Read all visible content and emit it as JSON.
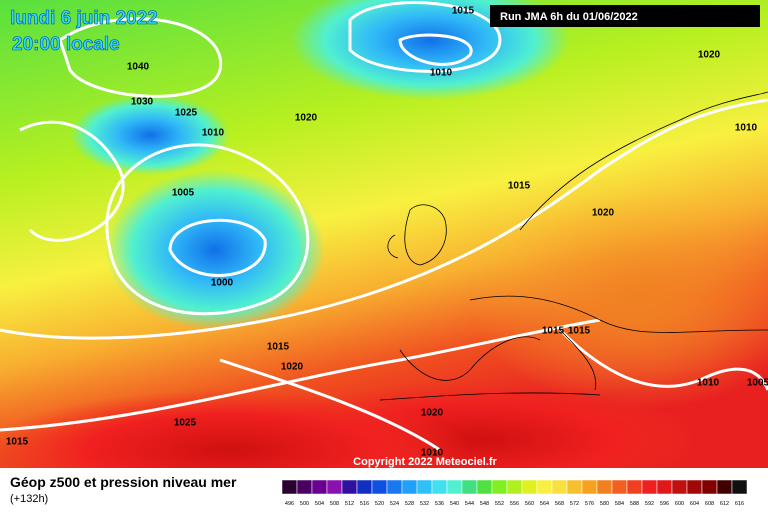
{
  "header": {
    "date": "lundi 6 juin 2022",
    "time": "20:00 locale",
    "run": "Run JMA 6h du 01/06/2022"
  },
  "isobar_labels": [
    "1040",
    "1030",
    "1025",
    "1010",
    "1005",
    "1000",
    "1015",
    "1010",
    "1020",
    "1020",
    "1010",
    "1015",
    "1020",
    "1015",
    "1020",
    "1015",
    "1015",
    "1010",
    "1005",
    "1020",
    "1025",
    "1015",
    "1010"
  ],
  "copyright": "Copyright 2022 Meteociel.fr",
  "footer": {
    "title": "Géop z500 et pression niveau mer",
    "lead": "(+132h)"
  },
  "colorbar": {
    "labels": [
      "496",
      "500",
      "504",
      "508",
      "512",
      "516",
      "520",
      "524",
      "528",
      "532",
      "536",
      "540",
      "544",
      "548",
      "552",
      "556",
      "560",
      "564",
      "568",
      "572",
      "576",
      "580",
      "584",
      "588",
      "592",
      "596",
      "600",
      "604",
      "608",
      "612",
      "616"
    ],
    "colors": [
      "#2a0030",
      "#4a0060",
      "#6a0090",
      "#8a10b0",
      "#3010a0",
      "#1030c0",
      "#1050e0",
      "#1878f0",
      "#20a0f8",
      "#30c0f8",
      "#40e0f0",
      "#50f0d0",
      "#40e080",
      "#50e040",
      "#80f020",
      "#b0f020",
      "#e0f020",
      "#f8f040",
      "#f8e040",
      "#f8c030",
      "#f8a020",
      "#f08020",
      "#f06020",
      "#f04020",
      "#f02020",
      "#e01818",
      "#c01010",
      "#a00808",
      "#800000",
      "#400000",
      "#101010"
    ]
  }
}
